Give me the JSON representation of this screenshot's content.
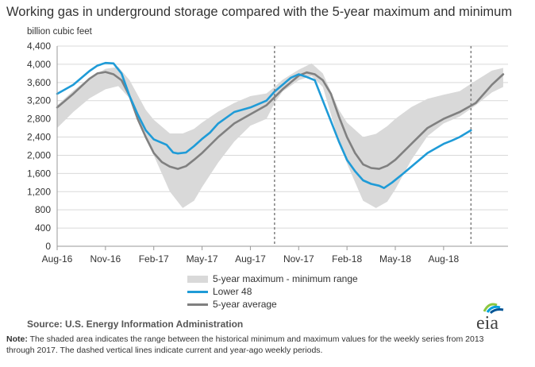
{
  "title": "Working gas in underground  storage compared with the 5-year maximum and minimum",
  "unit_label": "billion cubic feet",
  "source": "Source:  U.S. Energy Information Administration",
  "note_label": "Note:",
  "note_text": " The shaded area indicates the range between the historical minimum and maximum values for the weekly series from 2013 through 2017. The dashed vertical lines indicate current and year-ago weekly periods.",
  "logo_text": "eia",
  "chart_data": {
    "type": "area",
    "title": "Working gas in underground  storage compared with the 5-year maximum and minimum",
    "ylabel": "billion cubic feet",
    "xlabel": "",
    "ylim": [
      0,
      4400
    ],
    "yticks": [
      0,
      400,
      800,
      1200,
      1600,
      2000,
      2400,
      2800,
      3200,
      3600,
      4000,
      4400
    ],
    "ytick_labels": [
      "0",
      "400",
      "800",
      "1,200",
      "1,600",
      "2,000",
      "2,400",
      "2,800",
      "3,200",
      "3,600",
      "4,000",
      "4,400"
    ],
    "x_unit": "month index (Aug-16 = 0)",
    "xlim": [
      0,
      28
    ],
    "xticks": [
      0,
      3,
      6,
      9,
      12,
      15,
      18,
      21,
      24
    ],
    "xtick_labels": [
      "Aug-16",
      "Nov-16",
      "Feb-17",
      "May-17",
      "Aug-17",
      "Nov-17",
      "Feb-18",
      "May-18",
      "Aug-18"
    ],
    "grid": true,
    "legend_position": "bottom-center",
    "colors": {
      "range": "#d9d9d9",
      "lower48": "#1f9bd7",
      "avg": "#808080",
      "grid": "#d9d9d9",
      "axis": "#999999",
      "dashed": "#808080"
    },
    "dashed_lines_x": [
      13.5,
      25.7
    ],
    "series": [
      {
        "name": "5-year maximum - minimum range",
        "kind": "range",
        "x": [
          0,
          1,
          2,
          3,
          3.8,
          4.5,
          5.5,
          6,
          7,
          7.8,
          8.5,
          9,
          10,
          11,
          12,
          13,
          13.5,
          14,
          15,
          15.8,
          16.5,
          17.5,
          18,
          19,
          19.8,
          20.5,
          21,
          22,
          23,
          24,
          25,
          26,
          27,
          27.7
        ],
        "high": [
          3100,
          3420,
          3700,
          3900,
          3940,
          3650,
          3000,
          2780,
          2480,
          2480,
          2580,
          2720,
          2960,
          3150,
          3300,
          3360,
          3500,
          3660,
          3880,
          4020,
          3800,
          3000,
          2720,
          2400,
          2470,
          2640,
          2800,
          3060,
          3240,
          3330,
          3410,
          3640,
          3860,
          3920
        ],
        "low": [
          2600,
          2950,
          3250,
          3450,
          3520,
          3250,
          2450,
          2000,
          1200,
          840,
          1000,
          1300,
          1840,
          2300,
          2650,
          2800,
          3150,
          3400,
          3650,
          3740,
          3500,
          2300,
          1820,
          1000,
          840,
          980,
          1250,
          1900,
          2420,
          2700,
          2850,
          3100,
          3380,
          3500
        ]
      },
      {
        "name": "Lower 48",
        "kind": "line",
        "x": [
          0,
          1,
          2,
          2.5,
          3,
          3.5,
          4,
          4.5,
          5,
          5.5,
          6,
          6.8,
          7.2,
          7.5,
          8,
          8.5,
          9,
          9.5,
          10,
          11,
          12,
          13,
          13.5,
          14,
          14.5,
          15,
          15.5,
          16,
          16.5,
          17,
          17.5,
          18,
          18.5,
          19,
          19.5,
          20,
          20.3,
          20.8,
          21.5,
          22,
          22.5,
          23,
          23.5,
          24,
          24.5,
          25,
          25.7
        ],
        "y": [
          3350,
          3550,
          3850,
          3970,
          4030,
          4020,
          3800,
          3300,
          2900,
          2550,
          2350,
          2230,
          2060,
          2040,
          2060,
          2200,
          2360,
          2500,
          2700,
          2950,
          3050,
          3200,
          3400,
          3550,
          3700,
          3780,
          3720,
          3650,
          3200,
          2750,
          2300,
          1900,
          1650,
          1450,
          1370,
          1330,
          1280,
          1400,
          1600,
          1750,
          1900,
          2050,
          2150,
          2250,
          2320,
          2400,
          2550
        ]
      },
      {
        "name": "5-year average",
        "kind": "line",
        "x": [
          0,
          1,
          2,
          2.5,
          3,
          3.5,
          4,
          4.5,
          5,
          5.5,
          6,
          6.5,
          7,
          7.5,
          8,
          8.5,
          9,
          10,
          11,
          12,
          13,
          14,
          15,
          15.5,
          16,
          16.5,
          17,
          17.5,
          18,
          18.5,
          19,
          19.5,
          20,
          20.5,
          21,
          22,
          23,
          24,
          25,
          26,
          27,
          27.7
        ],
        "y": [
          3050,
          3350,
          3680,
          3800,
          3830,
          3780,
          3650,
          3300,
          2800,
          2400,
          2050,
          1850,
          1750,
          1700,
          1760,
          1900,
          2050,
          2400,
          2700,
          2900,
          3100,
          3450,
          3750,
          3820,
          3780,
          3650,
          3350,
          2850,
          2400,
          2050,
          1800,
          1720,
          1700,
          1770,
          1900,
          2250,
          2600,
          2800,
          2950,
          3150,
          3550,
          3780
        ]
      }
    ]
  },
  "legend": [
    {
      "label": "5-year maximum - minimum range"
    },
    {
      "label": "Lower 48"
    },
    {
      "label": "5-year average"
    }
  ]
}
